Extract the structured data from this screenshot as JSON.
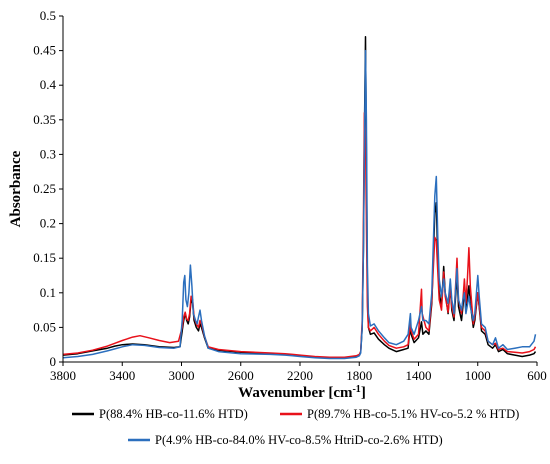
{
  "chart_data": {
    "type": "line",
    "xlabel": "Wavenumber [cm",
    "xlabel_sup": "-1",
    "xlabel_end": "]",
    "ylabel": "Absorbance",
    "xlim": [
      3800,
      600
    ],
    "x_reversed": true,
    "ylim": [
      0,
      0.5
    ],
    "x_ticks": [
      3800,
      3400,
      3000,
      2600,
      2200,
      1800,
      1400,
      1000,
      600
    ],
    "x_tick_labels": [
      "3800",
      "3400",
      "3000",
      "2600",
      "2200",
      "1800",
      "1400",
      "1000",
      "600"
    ],
    "y_ticks": [
      0,
      0.05,
      0.1,
      0.15,
      0.2,
      0.25,
      0.3,
      0.35,
      0.4,
      0.45,
      0.5
    ],
    "y_tick_labels": [
      "0",
      "0.05",
      "0.1",
      "0.15",
      "0.2",
      "0.25",
      "0.3",
      "0.35",
      "0.4",
      "0.45",
      "0.5"
    ],
    "grid": false,
    "legend_position": "bottom",
    "series": [
      {
        "name": "P(88.4% HB-co-11.6% HTD)",
        "color": "#000000",
        "points": [
          [
            3800,
            0.01
          ],
          [
            3700,
            0.012
          ],
          [
            3600,
            0.016
          ],
          [
            3500,
            0.02
          ],
          [
            3450,
            0.023
          ],
          [
            3400,
            0.025
          ],
          [
            3330,
            0.026
          ],
          [
            3250,
            0.025
          ],
          [
            3150,
            0.022
          ],
          [
            3050,
            0.021
          ],
          [
            3010,
            0.022
          ],
          [
            2995,
            0.045
          ],
          [
            2985,
            0.06
          ],
          [
            2975,
            0.07
          ],
          [
            2965,
            0.06
          ],
          [
            2955,
            0.055
          ],
          [
            2945,
            0.065
          ],
          [
            2935,
            0.09
          ],
          [
            2925,
            0.085
          ],
          [
            2915,
            0.06
          ],
          [
            2900,
            0.05
          ],
          [
            2885,
            0.045
          ],
          [
            2875,
            0.055
          ],
          [
            2865,
            0.05
          ],
          [
            2845,
            0.035
          ],
          [
            2820,
            0.02
          ],
          [
            2750,
            0.017
          ],
          [
            2600,
            0.014
          ],
          [
            2400,
            0.012
          ],
          [
            2300,
            0.011
          ],
          [
            2250,
            0.01
          ],
          [
            2200,
            0.009
          ],
          [
            2100,
            0.007
          ],
          [
            2000,
            0.006
          ],
          [
            1900,
            0.006
          ],
          [
            1820,
            0.008
          ],
          [
            1800,
            0.01
          ],
          [
            1790,
            0.015
          ],
          [
            1780,
            0.05
          ],
          [
            1772,
            0.16
          ],
          [
            1765,
            0.33
          ],
          [
            1758,
            0.47
          ],
          [
            1752,
            0.3
          ],
          [
            1745,
            0.1
          ],
          [
            1738,
            0.05
          ],
          [
            1725,
            0.04
          ],
          [
            1700,
            0.042
          ],
          [
            1670,
            0.033
          ],
          [
            1630,
            0.025
          ],
          [
            1600,
            0.02
          ],
          [
            1550,
            0.015
          ],
          [
            1500,
            0.018
          ],
          [
            1470,
            0.02
          ],
          [
            1455,
            0.055
          ],
          [
            1450,
            0.04
          ],
          [
            1430,
            0.028
          ],
          [
            1400,
            0.035
          ],
          [
            1380,
            0.058
          ],
          [
            1370,
            0.04
          ],
          [
            1350,
            0.045
          ],
          [
            1330,
            0.04
          ],
          [
            1310,
            0.085
          ],
          [
            1290,
            0.215
          ],
          [
            1280,
            0.23
          ],
          [
            1270,
            0.15
          ],
          [
            1260,
            0.1
          ],
          [
            1245,
            0.08
          ],
          [
            1230,
            0.138
          ],
          [
            1220,
            0.1
          ],
          [
            1200,
            0.07
          ],
          [
            1185,
            0.11
          ],
          [
            1175,
            0.075
          ],
          [
            1160,
            0.06
          ],
          [
            1140,
            0.125
          ],
          [
            1130,
            0.08
          ],
          [
            1110,
            0.06
          ],
          [
            1100,
            0.08
          ],
          [
            1090,
            0.1
          ],
          [
            1080,
            0.075
          ],
          [
            1060,
            0.11
          ],
          [
            1050,
            0.085
          ],
          [
            1030,
            0.05
          ],
          [
            1020,
            0.06
          ],
          [
            1000,
            0.1
          ],
          [
            990,
            0.08
          ],
          [
            975,
            0.045
          ],
          [
            950,
            0.04
          ],
          [
            930,
            0.025
          ],
          [
            900,
            0.02
          ],
          [
            880,
            0.025
          ],
          [
            860,
            0.015
          ],
          [
            830,
            0.018
          ],
          [
            800,
            0.012
          ],
          [
            750,
            0.01
          ],
          [
            700,
            0.008
          ],
          [
            650,
            0.01
          ],
          [
            620,
            0.012
          ],
          [
            610,
            0.015
          ]
        ]
      },
      {
        "name": "P(89.7% HB-co-5.1% HV-co-5.2 % HTD)",
        "color": "#e8111a",
        "points": [
          [
            3800,
            0.011
          ],
          [
            3700,
            0.013
          ],
          [
            3600,
            0.017
          ],
          [
            3500,
            0.023
          ],
          [
            3450,
            0.027
          ],
          [
            3400,
            0.031
          ],
          [
            3330,
            0.036
          ],
          [
            3280,
            0.038
          ],
          [
            3220,
            0.035
          ],
          [
            3150,
            0.031
          ],
          [
            3080,
            0.028
          ],
          [
            3020,
            0.03
          ],
          [
            2995,
            0.05
          ],
          [
            2985,
            0.065
          ],
          [
            2975,
            0.072
          ],
          [
            2965,
            0.062
          ],
          [
            2955,
            0.06
          ],
          [
            2945,
            0.07
          ],
          [
            2935,
            0.095
          ],
          [
            2925,
            0.09
          ],
          [
            2915,
            0.065
          ],
          [
            2900,
            0.055
          ],
          [
            2885,
            0.05
          ],
          [
            2875,
            0.06
          ],
          [
            2865,
            0.055
          ],
          [
            2845,
            0.037
          ],
          [
            2820,
            0.022
          ],
          [
            2750,
            0.018
          ],
          [
            2600,
            0.015
          ],
          [
            2400,
            0.013
          ],
          [
            2300,
            0.012
          ],
          [
            2250,
            0.011
          ],
          [
            2200,
            0.01
          ],
          [
            2100,
            0.008
          ],
          [
            2000,
            0.007
          ],
          [
            1900,
            0.007
          ],
          [
            1820,
            0.009
          ],
          [
            1800,
            0.011
          ],
          [
            1790,
            0.015
          ],
          [
            1780,
            0.06
          ],
          [
            1772,
            0.2
          ],
          [
            1765,
            0.36
          ],
          [
            1758,
            0.33
          ],
          [
            1752,
            0.2
          ],
          [
            1745,
            0.08
          ],
          [
            1738,
            0.05
          ],
          [
            1725,
            0.045
          ],
          [
            1700,
            0.05
          ],
          [
            1670,
            0.04
          ],
          [
            1630,
            0.03
          ],
          [
            1600,
            0.024
          ],
          [
            1550,
            0.02
          ],
          [
            1500,
            0.022
          ],
          [
            1470,
            0.025
          ],
          [
            1455,
            0.06
          ],
          [
            1450,
            0.045
          ],
          [
            1430,
            0.033
          ],
          [
            1400,
            0.04
          ],
          [
            1380,
            0.105
          ],
          [
            1375,
            0.07
          ],
          [
            1350,
            0.05
          ],
          [
            1330,
            0.045
          ],
          [
            1310,
            0.09
          ],
          [
            1290,
            0.18
          ],
          [
            1280,
            0.175
          ],
          [
            1270,
            0.13
          ],
          [
            1260,
            0.09
          ],
          [
            1245,
            0.075
          ],
          [
            1230,
            0.13
          ],
          [
            1220,
            0.095
          ],
          [
            1200,
            0.072
          ],
          [
            1185,
            0.11
          ],
          [
            1175,
            0.08
          ],
          [
            1160,
            0.065
          ],
          [
            1140,
            0.15
          ],
          [
            1130,
            0.09
          ],
          [
            1110,
            0.07
          ],
          [
            1100,
            0.09
          ],
          [
            1090,
            0.12
          ],
          [
            1080,
            0.085
          ],
          [
            1070,
            0.12
          ],
          [
            1060,
            0.165
          ],
          [
            1050,
            0.11
          ],
          [
            1030,
            0.055
          ],
          [
            1020,
            0.065
          ],
          [
            1000,
            0.1
          ],
          [
            990,
            0.082
          ],
          [
            975,
            0.05
          ],
          [
            950,
            0.045
          ],
          [
            930,
            0.03
          ],
          [
            900,
            0.025
          ],
          [
            880,
            0.027
          ],
          [
            860,
            0.018
          ],
          [
            830,
            0.02
          ],
          [
            800,
            0.015
          ],
          [
            750,
            0.014
          ],
          [
            700,
            0.013
          ],
          [
            650,
            0.015
          ],
          [
            620,
            0.018
          ],
          [
            610,
            0.022
          ]
        ]
      },
      {
        "name": "P(4.9% HB-co-84.0% HV-co-8.5% HtriD-co-2.6% HTD)",
        "color": "#2b6fbe",
        "points": [
          [
            3800,
            0.006
          ],
          [
            3700,
            0.008
          ],
          [
            3600,
            0.011
          ],
          [
            3500,
            0.016
          ],
          [
            3450,
            0.019
          ],
          [
            3400,
            0.022
          ],
          [
            3330,
            0.025
          ],
          [
            3250,
            0.024
          ],
          [
            3150,
            0.021
          ],
          [
            3050,
            0.02
          ],
          [
            3010,
            0.022
          ],
          [
            2995,
            0.06
          ],
          [
            2985,
            0.115
          ],
          [
            2978,
            0.125
          ],
          [
            2970,
            0.09
          ],
          [
            2960,
            0.08
          ],
          [
            2950,
            0.1
          ],
          [
            2940,
            0.14
          ],
          [
            2930,
            0.11
          ],
          [
            2920,
            0.07
          ],
          [
            2905,
            0.06
          ],
          [
            2895,
            0.055
          ],
          [
            2885,
            0.065
          ],
          [
            2875,
            0.075
          ],
          [
            2865,
            0.06
          ],
          [
            2845,
            0.038
          ],
          [
            2820,
            0.02
          ],
          [
            2750,
            0.015
          ],
          [
            2600,
            0.012
          ],
          [
            2400,
            0.011
          ],
          [
            2300,
            0.01
          ],
          [
            2250,
            0.009
          ],
          [
            2200,
            0.008
          ],
          [
            2100,
            0.006
          ],
          [
            2000,
            0.005
          ],
          [
            1900,
            0.005
          ],
          [
            1820,
            0.007
          ],
          [
            1800,
            0.009
          ],
          [
            1790,
            0.013
          ],
          [
            1780,
            0.05
          ],
          [
            1772,
            0.16
          ],
          [
            1765,
            0.3
          ],
          [
            1758,
            0.45
          ],
          [
            1752,
            0.35
          ],
          [
            1745,
            0.14
          ],
          [
            1738,
            0.07
          ],
          [
            1725,
            0.052
          ],
          [
            1700,
            0.055
          ],
          [
            1670,
            0.045
          ],
          [
            1630,
            0.035
          ],
          [
            1600,
            0.028
          ],
          [
            1550,
            0.025
          ],
          [
            1500,
            0.03
          ],
          [
            1470,
            0.04
          ],
          [
            1455,
            0.07
          ],
          [
            1450,
            0.05
          ],
          [
            1430,
            0.04
          ],
          [
            1400,
            0.06
          ],
          [
            1380,
            0.08
          ],
          [
            1370,
            0.06
          ],
          [
            1350,
            0.06
          ],
          [
            1330,
            0.055
          ],
          [
            1310,
            0.1
          ],
          [
            1290,
            0.24
          ],
          [
            1280,
            0.268
          ],
          [
            1270,
            0.18
          ],
          [
            1260,
            0.12
          ],
          [
            1245,
            0.095
          ],
          [
            1230,
            0.12
          ],
          [
            1220,
            0.1
          ],
          [
            1200,
            0.085
          ],
          [
            1185,
            0.12
          ],
          [
            1175,
            0.09
          ],
          [
            1160,
            0.07
          ],
          [
            1140,
            0.135
          ],
          [
            1130,
            0.09
          ],
          [
            1110,
            0.075
          ],
          [
            1100,
            0.09
          ],
          [
            1090,
            0.1
          ],
          [
            1080,
            0.07
          ],
          [
            1060,
            0.095
          ],
          [
            1050,
            0.08
          ],
          [
            1030,
            0.06
          ],
          [
            1020,
            0.07
          ],
          [
            1000,
            0.125
          ],
          [
            990,
            0.095
          ],
          [
            975,
            0.055
          ],
          [
            950,
            0.05
          ],
          [
            930,
            0.03
          ],
          [
            900,
            0.025
          ],
          [
            880,
            0.035
          ],
          [
            860,
            0.02
          ],
          [
            830,
            0.025
          ],
          [
            800,
            0.018
          ],
          [
            750,
            0.02
          ],
          [
            700,
            0.022
          ],
          [
            650,
            0.022
          ],
          [
            620,
            0.03
          ],
          [
            610,
            0.04
          ]
        ]
      }
    ]
  }
}
